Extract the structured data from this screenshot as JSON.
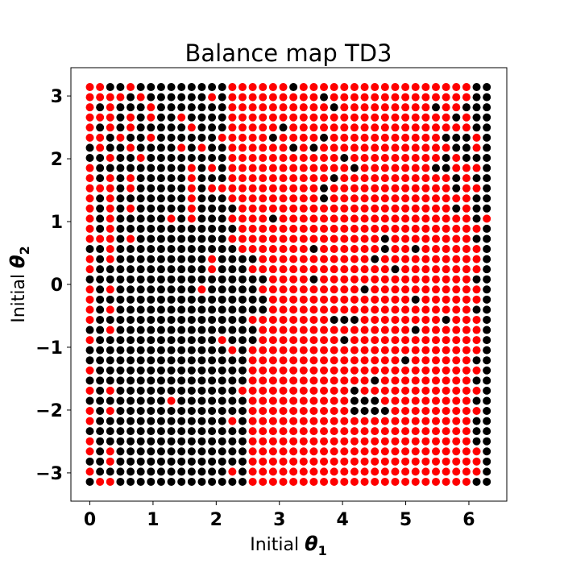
{
  "chart_data": {
    "type": "scatter",
    "title": "Balance map TD3",
    "xlabel_text": "Initial ",
    "xlabel_symbol": "θ",
    "xlabel_sub": "1",
    "ylabel_text": "Initial ",
    "ylabel_symbol": "θ",
    "ylabel_sub": "2",
    "xlim": [
      -0.3,
      6.6
    ],
    "ylim": [
      -3.45,
      3.45
    ],
    "x_ticks": [
      0,
      1,
      2,
      3,
      4,
      5,
      6
    ],
    "x_tick_labels": [
      "0",
      "1",
      "2",
      "3",
      "4",
      "5",
      "6"
    ],
    "y_ticks": [
      3,
      2,
      1,
      0,
      -1,
      -2,
      -3
    ],
    "y_tick_labels": [
      "3",
      "2",
      "1",
      "0",
      "−1",
      "−2",
      "−3"
    ],
    "grid": false,
    "legend": "none",
    "series_colors": {
      "balanced": "#000000",
      "not_balanced": "#ff0000"
    },
    "x_range": [
      0,
      6.2832
    ],
    "y_range": [
      -3.1416,
      3.1416
    ],
    "grid_n": 40,
    "rows_top_to_bottom": [
      "0011011111111100000010000000000000000011",
      "0000101111110100000000010000000000000011",
      "0101110111111100000000001000000000100111",
      "0001010110111100000000000000000000001011",
      "0101011111011100000100000000000000000011",
      "0010110111111000001000010000000000011101",
      "1011011110101100000010100000000000001101",
      "1101101111111100000000000100000000010111",
      "0111111111010100000000000010000000110001",
      "0101011111011100000000001000000000001011",
      "0001011111010000000000010000000000001001",
      "0101111111011100000000010000000000000011",
      "0101011111011110000000000000000000001011",
      "0101111101011100001000000000000000000010",
      "0101111111111110000000000000000000000001",
      "0001011111111100000000000000010000000011",
      "1101111111111110000000100000010010000001",
      "0101111111110111100000000000100000000001",
      "0111111111110111000000000000001000000001",
      "1111111111111111110000100000000000000011",
      "0101111111101111100000000001000000000001",
      "0111111111111111110000000000000010000001",
      "0101111111111111110000000000000000000011",
      "0111111111111111000000001110000000010001",
      "1101111111111111100000000000000010000001",
      "0111111111111011100000000100000000000001",
      "1111111111111101000000000000000000000001",
      "1111111111111111000000000000000100000011",
      "0111111111111111000000000000000000000001",
      "1111111111111111000000000000100000000011",
      "0101111111111110000000000010000000000001",
      "1111111101111111000000000011100000000011",
      "0101111111111111000000000011110000000001",
      "0111111111111101000000000000000000000011",
      "1111111111111111000000000000000000000011",
      "0111111111111111000000000000000000000011",
      "0101111111111111000000000000000000000001",
      "1101111111111111000000000000000000000001",
      "0111111111111101000000000000000000000001",
      "1001111111111111000000000000000000000011"
    ]
  }
}
